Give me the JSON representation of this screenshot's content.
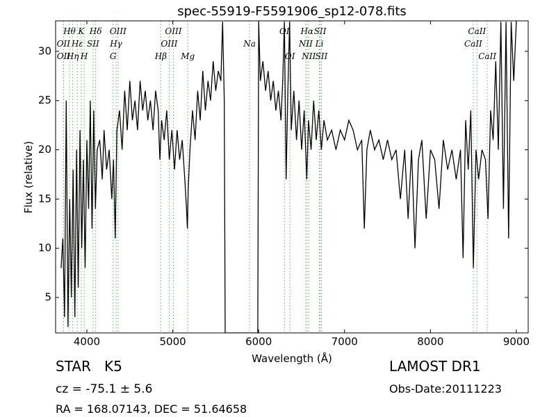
{
  "chart_data": {
    "type": "line",
    "title": "spec-55919-F5591906_sp12-078.fits",
    "x_label": "Wavelength (Å)",
    "y_label": "Flux (relative)",
    "color": "#000000",
    "xlim": [
      3636,
      9138
    ],
    "ylim": [
      1.4,
      33.1
    ],
    "xticks": [
      4000,
      5000,
      6000,
      7000,
      8000,
      9000
    ],
    "yticks": [
      5,
      10,
      15,
      20,
      25,
      30
    ],
    "grid": false,
    "x": [
      3700,
      3720,
      3740,
      3760,
      3780,
      3800,
      3820,
      3840,
      3860,
      3880,
      3900,
      3920,
      3940,
      3960,
      3980,
      4000,
      4020,
      4040,
      4060,
      4080,
      4100,
      4120,
      4150,
      4180,
      4200,
      4230,
      4260,
      4290,
      4310,
      4330,
      4350,
      4380,
      4410,
      4440,
      4470,
      4500,
      4530,
      4560,
      4590,
      4620,
      4650,
      4680,
      4710,
      4740,
      4770,
      4800,
      4830,
      4850,
      4870,
      4900,
      4930,
      4960,
      4990,
      5020,
      5050,
      5080,
      5110,
      5140,
      5160,
      5170,
      5180,
      5200,
      5230,
      5260,
      5290,
      5320,
      5350,
      5380,
      5410,
      5440,
      5470,
      5500,
      5530,
      5560,
      5580,
      5600,
      5610,
      5990,
      6000,
      6020,
      6050,
      6080,
      6110,
      6140,
      6170,
      6200,
      6230,
      6260,
      6280,
      6300,
      6320,
      6340,
      6360,
      6380,
      6410,
      6440,
      6470,
      6500,
      6530,
      6560,
      6580,
      6610,
      6640,
      6670,
      6700,
      6730,
      6760,
      6800,
      6850,
      6900,
      6950,
      7000,
      7050,
      7100,
      7150,
      7200,
      7230,
      7260,
      7300,
      7350,
      7400,
      7450,
      7500,
      7550,
      7600,
      7650,
      7700,
      7740,
      7780,
      7820,
      7860,
      7900,
      7950,
      8000,
      8050,
      8100,
      8150,
      8200,
      8250,
      8300,
      8350,
      8380,
      8410,
      8440,
      8470,
      8500,
      8530,
      8560,
      8600,
      8640,
      8670,
      8700,
      8730,
      8760,
      8790,
      8820,
      8850,
      8880,
      8910,
      8940,
      8970,
      9000
    ],
    "values": [
      8,
      11,
      3,
      25,
      2,
      15,
      5,
      18,
      3,
      20,
      6,
      22,
      10,
      19,
      8,
      21,
      14,
      25,
      12,
      24,
      14,
      20,
      21,
      17,
      22,
      18,
      20,
      15,
      19,
      11,
      22,
      24,
      20,
      26,
      22,
      27,
      23,
      25,
      22,
      27,
      24,
      26,
      23,
      25,
      22,
      26,
      24,
      19,
      23,
      21,
      24,
      19,
      22,
      18,
      22,
      19,
      21,
      17,
      14,
      12,
      16,
      20,
      24,
      21,
      26,
      23,
      28,
      24,
      27,
      25,
      29,
      26,
      28,
      27,
      33,
      25,
      1.4,
      1.4,
      33,
      27,
      29,
      26,
      28,
      25,
      27,
      24,
      26,
      23,
      27,
      33,
      17,
      26,
      33,
      22,
      26,
      21,
      25,
      20,
      24,
      17,
      23,
      20,
      25,
      21,
      24,
      20,
      23,
      21,
      22,
      20,
      22,
      21,
      23,
      22,
      20,
      21,
      12,
      20,
      22,
      20,
      21,
      19,
      21,
      19,
      20,
      15,
      20,
      13,
      20,
      10,
      19,
      21,
      13,
      20,
      19,
      14,
      21,
      18,
      20,
      17,
      20,
      9,
      23,
      18,
      24,
      8,
      20,
      17,
      20,
      19,
      13,
      24,
      21,
      29,
      20,
      33,
      14,
      33,
      11,
      33,
      27,
      33
    ],
    "marker_color": "#5cb85c",
    "line_markers": [
      [
        {
          "label": "Hθ",
          "x": 3798
        },
        {
          "label": "K",
          "x": 3934
        },
        {
          "label": "Hδ",
          "x": 4102
        },
        {
          "label": "OIII",
          "x": 4363
        },
        {
          "label": "OIII",
          "x": 5007
        },
        {
          "label": "OI",
          "x": 6300
        },
        {
          "label": "Hα",
          "x": 6563
        },
        {
          "label": "SII",
          "x": 6716
        },
        {
          "label": "CaII",
          "x": 8542
        }
      ],
      [
        {
          "label": "OII",
          "x": 3727
        },
        {
          "label": "Hε",
          "x": 3889
        },
        {
          "label": "SII",
          "x": 4072
        },
        {
          "label": "Hγ",
          "x": 4340
        },
        {
          "label": "OIII",
          "x": 4959
        },
        {
          "label": "Na",
          "x": 5894
        },
        {
          "label": "NII",
          "x": 6548
        },
        {
          "label": "Li",
          "x": 6707
        },
        {
          "label": "CaII",
          "x": 8498
        }
      ],
      [
        {
          "label": "OII",
          "x": 3729
        },
        {
          "label": "Hη",
          "x": 3835
        },
        {
          "label": "H",
          "x": 3969
        },
        {
          "label": "G",
          "x": 4305
        },
        {
          "label": "Hβ",
          "x": 4861
        },
        {
          "label": "Mg",
          "x": 5175
        },
        {
          "label": "OI",
          "x": 6364
        },
        {
          "label": "NII",
          "x": 6583
        },
        {
          "label": "SII",
          "x": 6731
        },
        {
          "label": "CaII",
          "x": 8662
        }
      ]
    ]
  },
  "footer": {
    "object": "STAR   K5",
    "redshift": "cz = -75.1 ± 5.6",
    "coords": "RA = 168.07143, DEC = 51.64658",
    "survey": "LAMOST DR1",
    "obs_date": "Obs-Date:20111223"
  }
}
